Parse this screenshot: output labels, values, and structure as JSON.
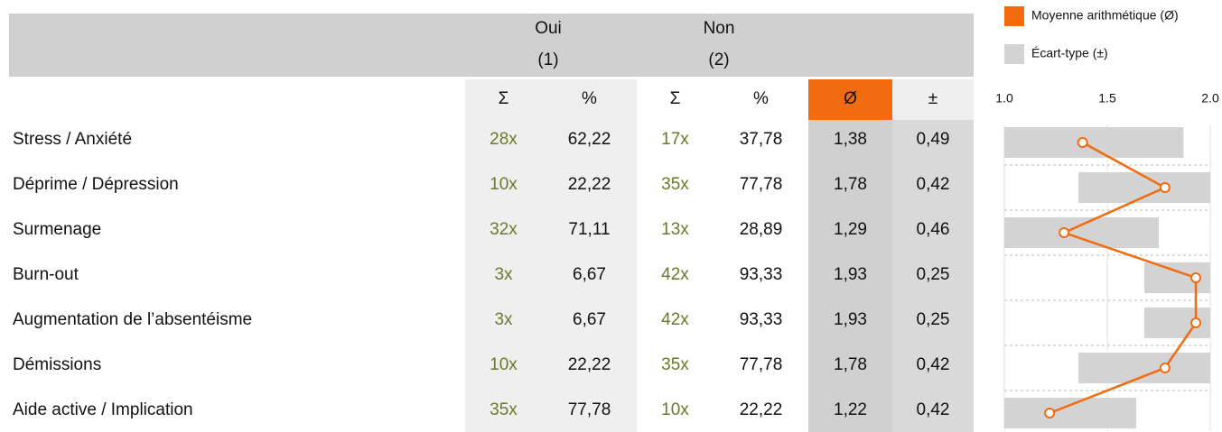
{
  "header": {
    "oui": "Oui",
    "oui_num": "(1)",
    "non": "Non",
    "non_num": "(2)"
  },
  "table": {
    "columns": [
      "Σ",
      "%",
      "Σ",
      "%",
      "Ø",
      "±"
    ],
    "rows": [
      {
        "label": "Stress / Anxiété",
        "cells": [
          "28x",
          "62,22",
          "17x",
          "37,78",
          "1,38",
          "0,49"
        ]
      },
      {
        "label": "Déprime / Dépression",
        "cells": [
          "10x",
          "22,22",
          "35x",
          "77,78",
          "1,78",
          "0,42"
        ]
      },
      {
        "label": "Surmenage",
        "cells": [
          "32x",
          "71,11",
          "13x",
          "28,89",
          "1,29",
          "0,46"
        ]
      },
      {
        "label": "Burn-out",
        "cells": [
          "3x",
          "6,67",
          "42x",
          "93,33",
          "1,93",
          "0,25"
        ]
      },
      {
        "label": "Augmentation de l’absentéisme",
        "cells": [
          "3x",
          "6,67",
          "42x",
          "93,33",
          "1,93",
          "0,25"
        ]
      },
      {
        "label": "Démissions",
        "cells": [
          "10x",
          "22,22",
          "35x",
          "77,78",
          "1,78",
          "0,42"
        ]
      },
      {
        "label": "Aide active / Implication",
        "cells": [
          "35x",
          "77,78",
          "10x",
          "22,22",
          "1,22",
          "0,42"
        ]
      }
    ]
  },
  "chart_data": {
    "type": "line",
    "xlim": [
      1,
      2
    ],
    "xticks": [
      {
        "value": 1,
        "label": "1.0"
      },
      {
        "value": 1.5,
        "label": "1.5"
      },
      {
        "value": 2,
        "label": "2.0"
      }
    ],
    "series": [
      {
        "name": "Moyenne arithmétique (Ø)",
        "color": "#f26b0f",
        "values": [
          1.38,
          1.78,
          1.29,
          1.93,
          1.93,
          1.78,
          1.22
        ]
      },
      {
        "name": "Écart-type (±)",
        "color": "#d3d3d3",
        "values": [
          0.49,
          0.42,
          0.46,
          0.25,
          0.25,
          0.42,
          0.42
        ]
      }
    ]
  }
}
